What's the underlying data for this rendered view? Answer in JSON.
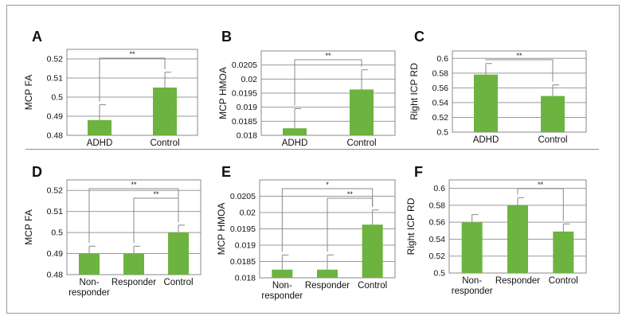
{
  "colors": {
    "bar": "#6db33f",
    "axis": "#888888",
    "grid": "#9a9a9a",
    "text": "#111111"
  },
  "chart_data": [
    {
      "panel": "A",
      "type": "bar",
      "categories": [
        "ADHD",
        "Control"
      ],
      "values": [
        0.488,
        0.505
      ],
      "errors": [
        0.008,
        0.008
      ],
      "ylabel": "MCP FA",
      "ylim": [
        0.48,
        0.525
      ],
      "yticks": [
        "0.48",
        "0.49",
        "0.5",
        "0.51",
        "0.52"
      ],
      "brackets": [
        {
          "from": 0,
          "to": 1,
          "label": "**"
        }
      ]
    },
    {
      "panel": "B",
      "type": "bar",
      "categories": [
        "ADHD",
        "Control"
      ],
      "values": [
        0.01825,
        0.01963
      ],
      "errors": [
        0.0007,
        0.0007
      ],
      "ylabel": "MCP HMOA",
      "ylim": [
        0.018,
        0.021
      ],
      "yticks": [
        "0.018",
        "0.0185",
        "0.019",
        "0.0195",
        "0.02",
        "0.0205"
      ],
      "brackets": [
        {
          "from": 0,
          "to": 1,
          "label": "**"
        }
      ]
    },
    {
      "panel": "C",
      "type": "bar",
      "categories": [
        "ADHD",
        "Control"
      ],
      "values": [
        0.578,
        0.549
      ],
      "errors": [
        0.015,
        0.015
      ],
      "ylabel": "Right ICP RD",
      "ylim": [
        0.5,
        0.61
      ],
      "yticks": [
        "0.5",
        "0.52",
        "0.54",
        "0.56",
        "0.58",
        "0.6"
      ],
      "brackets": [
        {
          "from": 0,
          "to": 1,
          "label": "**"
        }
      ]
    },
    {
      "panel": "D",
      "type": "bar",
      "categories": [
        "Non-\nresponder",
        "Responder",
        "Control"
      ],
      "values": [
        0.49,
        0.49,
        0.5
      ],
      "errors": [
        0.0035,
        0.0035,
        0.0035
      ],
      "ylabel": "MCP FA",
      "ylim": [
        0.48,
        0.525
      ],
      "yticks": [
        "0.48",
        "0.49",
        "0.5",
        "0.51",
        "0.52"
      ],
      "brackets": [
        {
          "from": 0,
          "to": 2,
          "label": "**"
        },
        {
          "from": 1,
          "to": 2,
          "label": "**"
        }
      ]
    },
    {
      "panel": "E",
      "type": "bar",
      "categories": [
        "Non-\nresponder",
        "Responder",
        "Control"
      ],
      "values": [
        0.01825,
        0.01825,
        0.01963
      ],
      "errors": [
        0.00045,
        0.00045,
        0.00045
      ],
      "ylabel": "MCP HMOA",
      "ylim": [
        0.018,
        0.021
      ],
      "yticks": [
        "0.018",
        "0.0185",
        "0.019",
        "0.0195",
        "0.02",
        "0.0205"
      ],
      "brackets": [
        {
          "from": 0,
          "to": 2,
          "label": "*"
        },
        {
          "from": 1,
          "to": 2,
          "label": "**"
        }
      ]
    },
    {
      "panel": "F",
      "type": "bar",
      "categories": [
        "Non-\nresponder",
        "Responder",
        "Control"
      ],
      "values": [
        0.56,
        0.58,
        0.549
      ],
      "errors": [
        0.009,
        0.009,
        0.009
      ],
      "ylabel": "Right ICP RD",
      "ylim": [
        0.5,
        0.61
      ],
      "yticks": [
        "0.5",
        "0.52",
        "0.54",
        "0.56",
        "0.58",
        "0.6"
      ],
      "brackets": [
        {
          "from": 1,
          "to": 2,
          "label": "**"
        }
      ]
    }
  ]
}
